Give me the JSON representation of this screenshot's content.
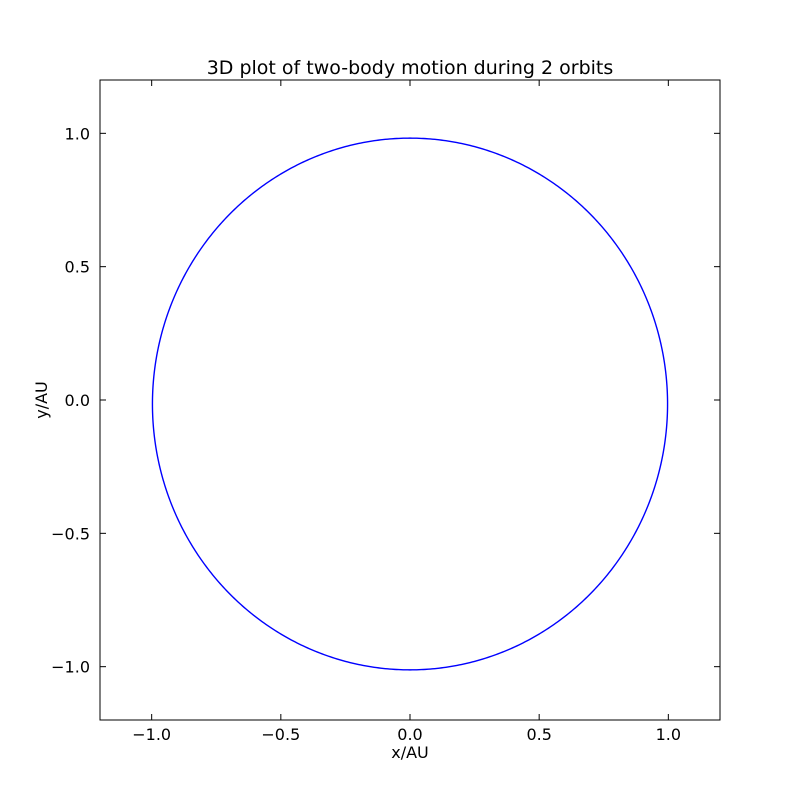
{
  "chart_data": {
    "type": "line",
    "title": "3D plot of two-body motion during 2 orbits",
    "xlabel": "x/AU",
    "ylabel": "y/AU",
    "xlim": [
      -1.2,
      1.2
    ],
    "ylim": [
      -1.2,
      1.2
    ],
    "x_ticks": [
      -1.0,
      -0.5,
      0.0,
      0.5,
      1.0
    ],
    "x_tick_labels": [
      "−1.0",
      "−0.5",
      "0.0",
      "0.5",
      "1.0"
    ],
    "y_ticks": [
      -1.0,
      -0.5,
      0.0,
      0.5,
      1.0
    ],
    "y_tick_labels": [
      "−1.0",
      "−0.5",
      "0.0",
      "0.5",
      "1.0"
    ],
    "grid": false,
    "legend": "none",
    "series": [
      {
        "color": "#0000ff",
        "shape": "ellipse",
        "center": [
          0.0,
          -0.015
        ],
        "semi_axis_x": 0.997,
        "semi_axis_y": 0.997,
        "orbits": 2
      }
    ]
  }
}
